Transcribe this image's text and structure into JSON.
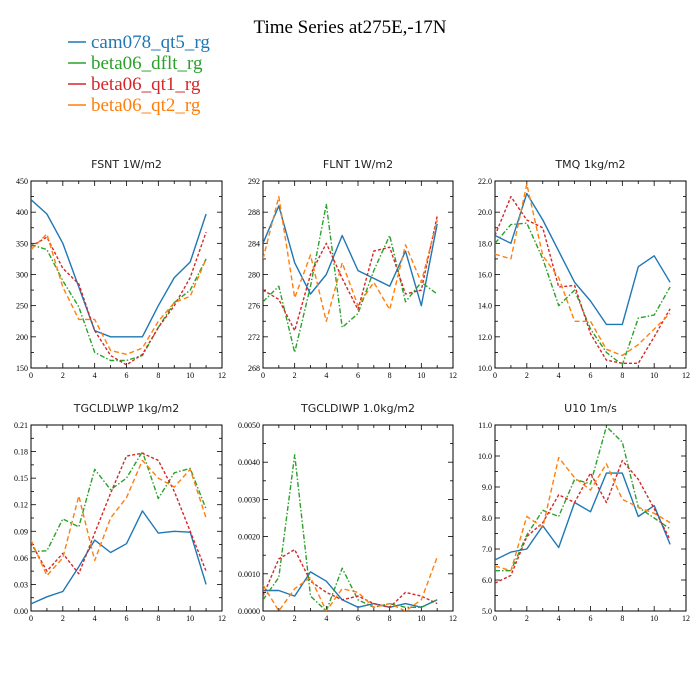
{
  "figure": {
    "title": "Time Series at275E,-17N",
    "legend": [
      {
        "name": "cam078_qt5_rg",
        "color": "#1f77b4"
      },
      {
        "name": "beta06_dflt_rg",
        "color": "#2ca02c"
      },
      {
        "name": "beta06_qt1_rg",
        "color": "#d62728"
      },
      {
        "name": "beta06_qt2_rg",
        "color": "#ff7f0e"
      }
    ]
  },
  "chart_data": [
    {
      "type": "line",
      "title": "FSNT   1W/m2",
      "xlim": [
        0,
        12
      ],
      "ylim": [
        150,
        450
      ],
      "xticks": [
        "0",
        "2",
        "4",
        "6",
        "8",
        "10",
        "12"
      ],
      "yticks": [
        "150",
        "200",
        "250",
        "300",
        "350",
        "400",
        "450"
      ],
      "x": [
        0,
        1,
        2,
        3,
        4,
        5,
        6,
        7,
        8,
        9,
        10,
        11
      ],
      "series": [
        {
          "name": "cam078_qt5_rg",
          "values": [
            420,
            397,
            350,
            280,
            210,
            200,
            200,
            200,
            250,
            295,
            320,
            397
          ]
        },
        {
          "name": "beta06_dflt_rg",
          "values": [
            348,
            340,
            290,
            248,
            175,
            162,
            162,
            170,
            215,
            255,
            275,
            325
          ]
        },
        {
          "name": "beta06_qt1_rg",
          "values": [
            345,
            360,
            310,
            285,
            210,
            170,
            155,
            172,
            215,
            250,
            295,
            368
          ]
        },
        {
          "name": "beta06_qt2_rg",
          "values": [
            340,
            365,
            280,
            228,
            228,
            178,
            172,
            182,
            225,
            255,
            265,
            325
          ]
        }
      ]
    },
    {
      "type": "line",
      "title": "FLNT   1W/m2",
      "xlim": [
        0,
        12
      ],
      "ylim": [
        268,
        292
      ],
      "xticks": [
        "0",
        "2",
        "4",
        "6",
        "8",
        "10",
        "12"
      ],
      "yticks": [
        "268",
        "272",
        "276",
        "280",
        "284",
        "288",
        "292"
      ],
      "x": [
        0,
        1,
        2,
        3,
        4,
        5,
        6,
        7,
        8,
        9,
        10,
        11
      ],
      "series": [
        {
          "name": "cam078_qt5_rg",
          "values": [
            284,
            288.8,
            281.5,
            277.5,
            280,
            285,
            280.5,
            279.5,
            278.5,
            283,
            276,
            286.5
          ]
        },
        {
          "name": "beta06_dflt_rg",
          "values": [
            276.5,
            278.5,
            270,
            278.5,
            289,
            273.2,
            275,
            280.5,
            285,
            276.5,
            279,
            277.5
          ]
        },
        {
          "name": "beta06_qt1_rg",
          "values": [
            278,
            276.8,
            272.8,
            280,
            284,
            279.5,
            275.5,
            283,
            283.5,
            277.5,
            278,
            287.5
          ]
        },
        {
          "name": "beta06_qt2_rg",
          "values": [
            282,
            290,
            277,
            282.5,
            274,
            281.5,
            276,
            279,
            275.5,
            283.8,
            279,
            287
          ]
        }
      ]
    },
    {
      "type": "line",
      "title": "TMQ   1kg/m2",
      "xlim": [
        0,
        12
      ],
      "ylim": [
        10,
        22
      ],
      "xticks": [
        "0",
        "2",
        "4",
        "6",
        "8",
        "10",
        "12"
      ],
      "yticks": [
        "10.0",
        "12.0",
        "14.0",
        "16.0",
        "18.0",
        "20.0",
        "22.0"
      ],
      "x": [
        0,
        1,
        2,
        3,
        4,
        5,
        6,
        7,
        8,
        9,
        10,
        11
      ],
      "series": [
        {
          "name": "cam078_qt5_rg",
          "values": [
            18.5,
            18,
            21.2,
            19.5,
            17.5,
            15.5,
            14.3,
            12.8,
            12.8,
            16.5,
            17.2,
            15.5
          ]
        },
        {
          "name": "beta06_dflt_rg",
          "values": [
            18,
            19.2,
            19.3,
            17,
            14,
            15,
            12.5,
            11,
            10.2,
            13.2,
            13.4,
            15.2
          ]
        },
        {
          "name": "beta06_qt1_rg",
          "values": [
            18.5,
            21,
            19.5,
            19,
            15.2,
            15.3,
            12.2,
            10.5,
            10.3,
            10.3,
            12,
            13.8
          ]
        },
        {
          "name": "beta06_qt2_rg",
          "values": [
            17.3,
            17,
            21.8,
            17.2,
            15.8,
            13,
            13,
            11.2,
            10.8,
            11.5,
            12.5,
            13.5
          ]
        }
      ]
    },
    {
      "type": "line",
      "title": "TGCLDLWP   1kg/m2",
      "xlim": [
        0,
        12
      ],
      "ylim": [
        0,
        0.21
      ],
      "xticks": [
        "0",
        "2",
        "4",
        "6",
        "8",
        "10",
        "12"
      ],
      "yticks": [
        "0.00",
        "0.03",
        "0.06",
        "0.09",
        "0.12",
        "0.15",
        "0.18",
        "0.21"
      ],
      "x": [
        0,
        1,
        2,
        3,
        4,
        5,
        6,
        7,
        8,
        9,
        10,
        11
      ],
      "series": [
        {
          "name": "cam078_qt5_rg",
          "values": [
            0.008,
            0.016,
            0.022,
            0.05,
            0.08,
            0.066,
            0.076,
            0.113,
            0.088,
            0.09,
            0.089,
            0.03
          ]
        },
        {
          "name": "beta06_dflt_rg",
          "values": [
            0.067,
            0.068,
            0.104,
            0.095,
            0.16,
            0.137,
            0.15,
            0.18,
            0.127,
            0.156,
            0.161,
            0.115
          ]
        },
        {
          "name": "beta06_qt1_rg",
          "values": [
            0.077,
            0.045,
            0.065,
            0.042,
            0.088,
            0.133,
            0.175,
            0.178,
            0.17,
            0.135,
            0.09,
            0.045
          ]
        },
        {
          "name": "beta06_qt2_rg",
          "values": [
            0.08,
            0.04,
            0.06,
            0.13,
            0.057,
            0.105,
            0.128,
            0.17,
            0.15,
            0.14,
            0.16,
            0.105
          ]
        }
      ]
    },
    {
      "type": "line",
      "title": "TGCLDIWP   1.0kg/m2",
      "xlim": [
        0,
        12
      ],
      "ylim": [
        0,
        0.005
      ],
      "xticks": [
        "0",
        "2",
        "4",
        "6",
        "8",
        "10",
        "12"
      ],
      "yticks": [
        "0.0000",
        "0.0010",
        "0.0020",
        "0.0030",
        "0.0040",
        "0.0050"
      ],
      "x": [
        0,
        1,
        2,
        3,
        4,
        5,
        6,
        7,
        8,
        9,
        10,
        11
      ],
      "series": [
        {
          "name": "cam078_qt5_rg",
          "values": [
            0.00055,
            0.00055,
            0.0004,
            0.00105,
            0.0008,
            0.0003,
            0.0001,
            0.0002,
            0.0001,
            0.0002,
            0.0001,
            0.0003
          ]
        },
        {
          "name": "beta06_dflt_rg",
          "values": [
            0.0003,
            0.0009,
            0.0042,
            0.0004,
            0.0,
            0.00115,
            0.0003,
            0.0001,
            0.0002,
            0.0001,
            0.0001,
            0.0003
          ]
        },
        {
          "name": "beta06_qt1_rg",
          "values": [
            0.0004,
            0.0014,
            0.00165,
            0.0008,
            0.0005,
            0.0003,
            0.0004,
            0.0002,
            0.0001,
            0.0005,
            0.0004,
            0.0002
          ]
        },
        {
          "name": "beta06_qt2_rg",
          "values": [
            0.0007,
            0.0,
            0.0006,
            0.0009,
            0.0,
            0.0006,
            0.0005,
            0.0001,
            0.0002,
            0.0,
            0.0003,
            0.00145
          ]
        }
      ]
    },
    {
      "type": "line",
      "title": "U10   1m/s",
      "xlim": [
        0,
        12
      ],
      "ylim": [
        5,
        11
      ],
      "xticks": [
        "0",
        "2",
        "4",
        "6",
        "8",
        "10",
        "12"
      ],
      "yticks": [
        "5.0",
        "6.0",
        "7.0",
        "8.0",
        "9.0",
        "10.0",
        "11.0"
      ],
      "x": [
        0,
        1,
        2,
        3,
        4,
        5,
        6,
        7,
        8,
        9,
        10,
        11
      ],
      "series": [
        {
          "name": "cam078_qt5_rg",
          "values": [
            6.65,
            6.9,
            7.0,
            7.75,
            7.05,
            8.5,
            8.2,
            9.45,
            9.45,
            8.05,
            8.4,
            7.15
          ]
        },
        {
          "name": "beta06_dflt_rg",
          "values": [
            6.3,
            6.3,
            7.45,
            8.25,
            8.05,
            9.25,
            9.1,
            10.95,
            10.45,
            8.35,
            8.0,
            7.65
          ]
        },
        {
          "name": "beta06_qt1_rg",
          "values": [
            5.9,
            6.15,
            7.4,
            7.85,
            8.75,
            8.5,
            9.45,
            8.5,
            9.85,
            9.25,
            8.3,
            7.3
          ]
        },
        {
          "name": "beta06_qt2_rg",
          "values": [
            6.45,
            6.3,
            8.05,
            7.7,
            9.95,
            9.3,
            8.9,
            9.75,
            8.6,
            8.35,
            8.15,
            7.85
          ]
        }
      ]
    }
  ]
}
